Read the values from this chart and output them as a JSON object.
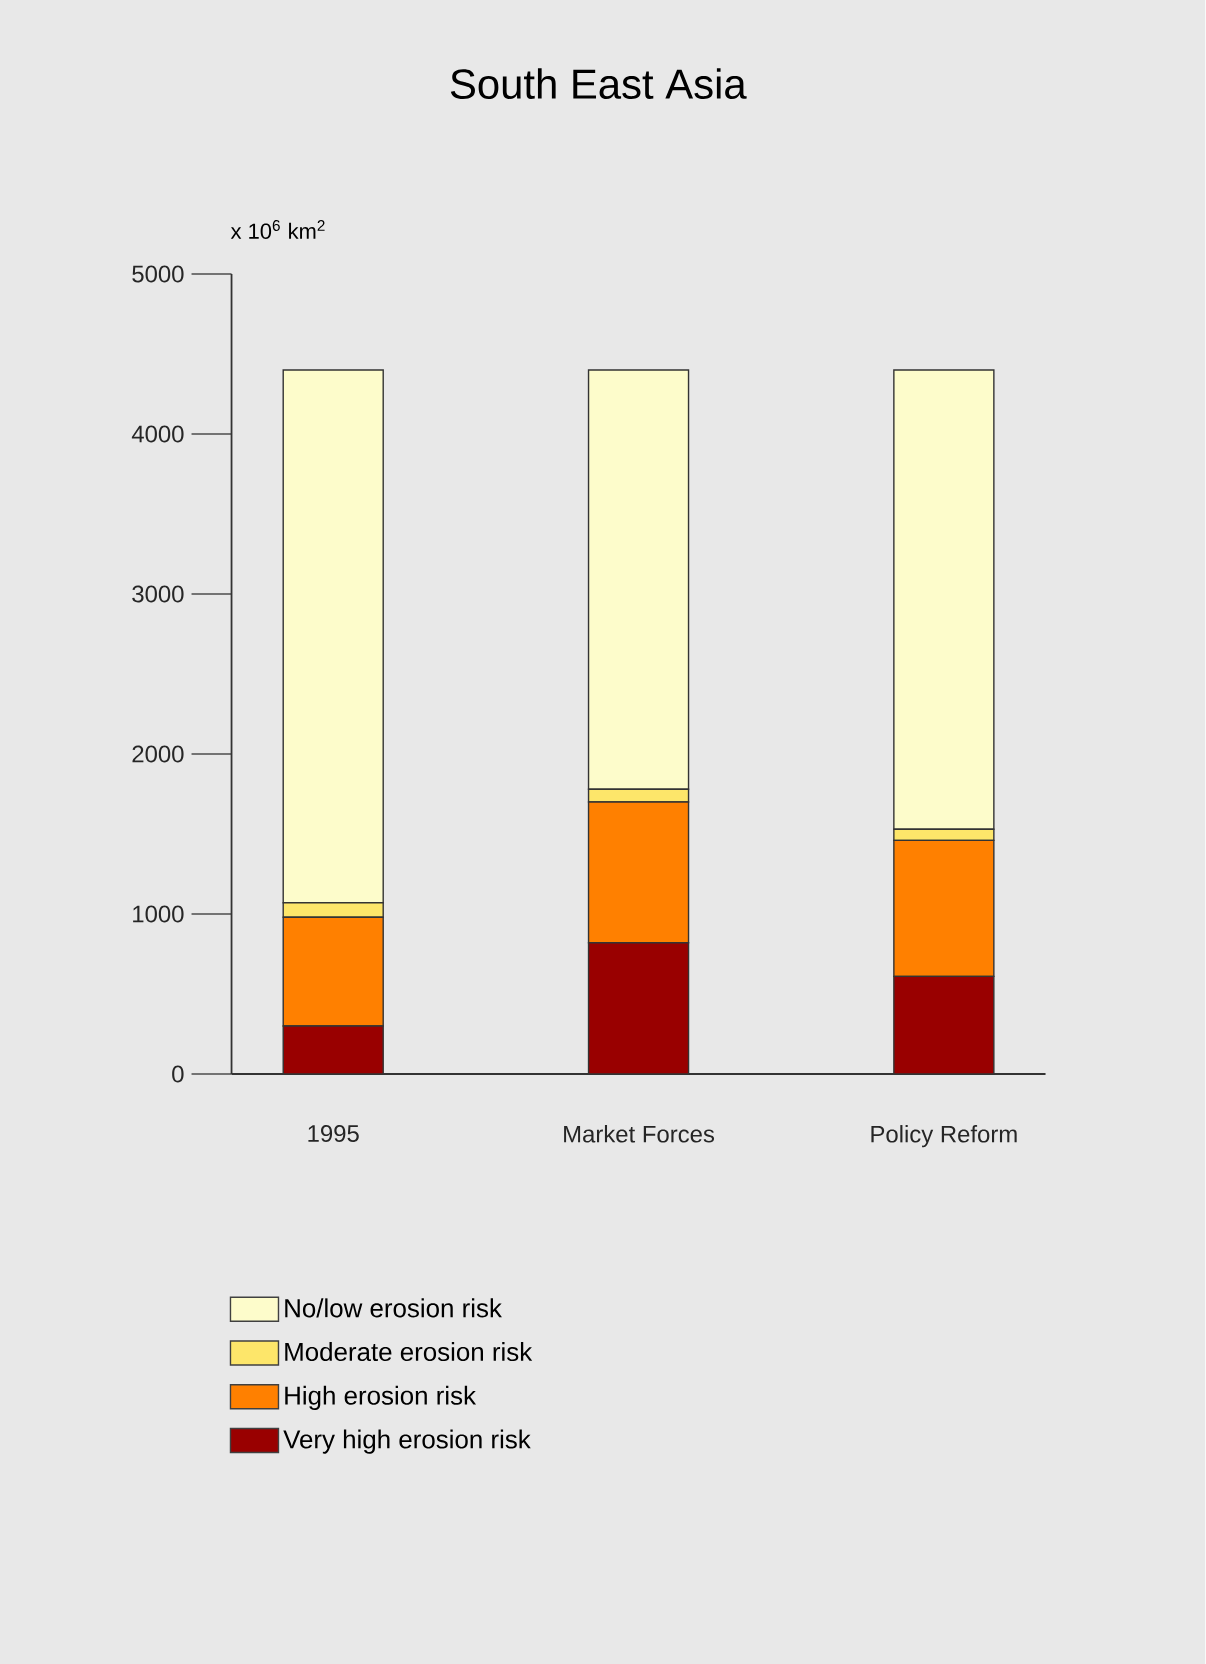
{
  "chart_data": {
    "type": "bar",
    "title": "South East Asia",
    "ylabel": "x 10$^{6}$ km$^{2}$",
    "categories": [
      "1995",
      "Market Forces",
      "Policy Reform"
    ],
    "stacked": true,
    "series": [
      {
        "name": "Very high erosion risk",
        "color": "#990000",
        "values": [
          300,
          820,
          610
        ]
      },
      {
        "name": "High erosion risk",
        "color": "#ff8000",
        "values": [
          680,
          880,
          850
        ]
      },
      {
        "name": "Moderate erosion risk",
        "color": "#fde66a",
        "values": [
          90,
          80,
          70
        ]
      },
      {
        "name": "No/low erosion risk",
        "color": "#fdfccb",
        "values": [
          3330,
          2620,
          2870
        ]
      }
    ],
    "ylim": [
      0,
      5000
    ],
    "yticks": [
      0,
      1000,
      2000,
      3000,
      4000,
      5000
    ],
    "legend": "bottom"
  }
}
